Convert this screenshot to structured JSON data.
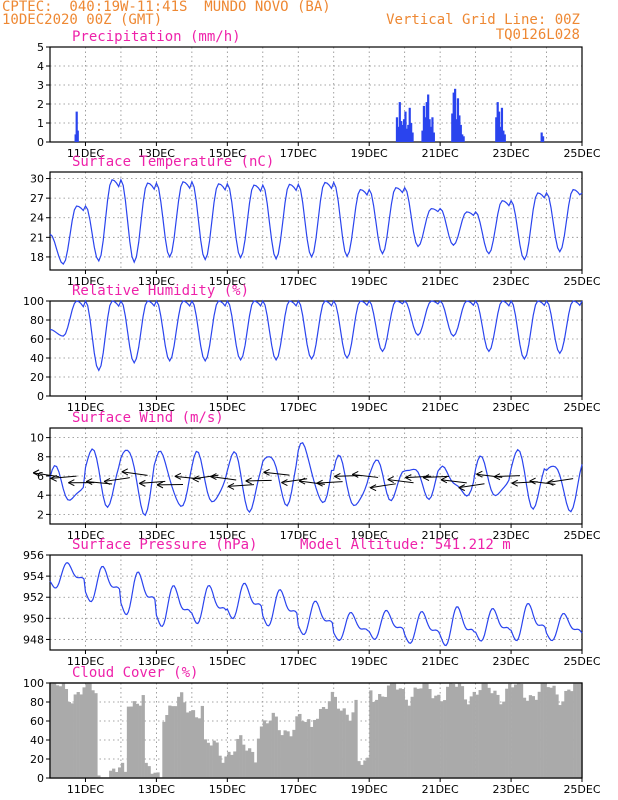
{
  "header": {
    "line1_left": "CPTEC:  040:19W-11:41S  MUNDO NOVO (BA)",
    "line2_left": "10DEC2020 00Z (GMT)",
    "line2_right": "Vertical Grid Line: 00Z",
    "line3_right": "TQ0126L028"
  },
  "colors": {
    "header": "#ee8833",
    "title": "#ee22aa",
    "series": "#2a44ee",
    "cloud": "#aaaaaa",
    "wind_arrow": "#000000"
  },
  "x_axis": {
    "labels": [
      "11DEC",
      "13DEC",
      "15DEC",
      "17DEC",
      "19DEC",
      "21DEC",
      "23DEC",
      "25DEC"
    ],
    "start": "10DEC2020 00Z",
    "end": "25DEC2020 00Z"
  },
  "chart_data": [
    {
      "id": "precip",
      "type": "bar",
      "title": "Precipitation (mm/h)",
      "ylim": [
        0,
        5
      ],
      "yticks": [
        0,
        1,
        2,
        3,
        4,
        5
      ],
      "grid": true,
      "x_days": [
        0.72,
        0.75,
        0.78,
        9.78,
        9.82,
        9.86,
        9.9,
        9.94,
        9.98,
        10.02,
        10.06,
        10.1,
        10.14,
        10.18,
        10.22,
        10.5,
        10.54,
        10.58,
        10.62,
        10.66,
        10.7,
        10.74,
        10.78,
        10.82,
        11.34,
        11.38,
        11.42,
        11.46,
        11.5,
        11.54,
        11.58,
        11.62,
        11.66,
        12.58,
        12.62,
        12.66,
        12.7,
        12.74,
        12.78,
        12.82,
        13.86,
        13.9
      ],
      "values": [
        0.4,
        1.6,
        0.6,
        1.3,
        0.8,
        2.1,
        1.1,
        0.9,
        1.2,
        1.6,
        0.7,
        0.9,
        1.8,
        1.0,
        0.5,
        0.6,
        1.9,
        1.3,
        2.1,
        2.5,
        1.2,
        0.8,
        1.3,
        0.5,
        1.5,
        2.6,
        2.8,
        1.2,
        2.3,
        1.4,
        0.9,
        0.4,
        0.3,
        1.3,
        2.1,
        1.6,
        0.8,
        1.8,
        0.6,
        0.4,
        0.5,
        0.3
      ]
    },
    {
      "id": "temperature",
      "type": "line",
      "title": "Surface Temperature (nC)",
      "ylim": [
        16,
        31
      ],
      "yticks": [
        18,
        21,
        24,
        27,
        30
      ],
      "grid": true,
      "daily_max": [
        25.8,
        29.8,
        29.3,
        29.5,
        29.2,
        29.0,
        29.1,
        29.4,
        28.3,
        28.6,
        25.4,
        24.9,
        26.6,
        27.8,
        28.3
      ],
      "daily_min": [
        16.9,
        17.4,
        17.2,
        18.0,
        17.6,
        17.9,
        17.7,
        18.0,
        18.1,
        18.5,
        19.6,
        19.8,
        18.5,
        17.6,
        18.8
      ]
    },
    {
      "id": "humidity",
      "type": "line",
      "title": "Relative Humidity (%)",
      "ylim": [
        0,
        100
      ],
      "yticks": [
        0,
        20,
        40,
        60,
        80,
        100
      ],
      "grid": true,
      "daily_max": [
        100,
        100,
        100,
        100,
        100,
        100,
        100,
        100,
        100,
        100,
        100,
        100,
        100,
        100,
        100
      ],
      "daily_min": [
        63,
        27,
        35,
        37,
        37,
        38,
        38,
        39,
        40,
        47,
        64,
        63,
        47,
        39,
        45
      ]
    },
    {
      "id": "wind",
      "type": "line",
      "title": "Surface Wind (m/s)",
      "ylim": [
        1,
        11
      ],
      "yticks": [
        2,
        4,
        6,
        8,
        10
      ],
      "grid": true,
      "speed_daily_max": [
        6.5,
        8.6,
        9.3,
        8.5,
        8.0,
        8.3,
        8.6,
        9.4,
        7.6,
        7.4,
        7.2,
        6.8,
        7.5,
        8.5,
        7.6
      ],
      "speed_daily_min": [
        3.3,
        3.2,
        2.4,
        2.6,
        3.0,
        2.7,
        3.4,
        3.0,
        2.6,
        3.9,
        4.1,
        3.9,
        3.7,
        3.0,
        2.8
      ],
      "arrows_every_hours": 12,
      "arrow_direction": "from east"
    },
    {
      "id": "pressure",
      "type": "line",
      "title": "Surface Pressure (hPa)",
      "annotation": "Model Altitude: 541.212 m",
      "ylim": [
        947,
        956
      ],
      "yticks": [
        948,
        950,
        952,
        954,
        956
      ],
      "grid": true,
      "daily_max": [
        955.4,
        955.1,
        954.6,
        953.3,
        953.3,
        953.5,
        952.9,
        951.8,
        950.7,
        950.9,
        950.8,
        951.3,
        951.1,
        951.6,
        950.6
      ],
      "daily_min": [
        952.6,
        951.2,
        949.9,
        948.8,
        949.1,
        949.6,
        948.9,
        948.1,
        947.6,
        947.7,
        947.3,
        947.0,
        947.5,
        947.5,
        947.6
      ]
    },
    {
      "id": "cloud",
      "type": "area",
      "title": "Cloud Cover (%)",
      "ylim": [
        0,
        100
      ],
      "yticks": [
        0,
        20,
        40,
        60,
        80,
        100
      ],
      "grid": true,
      "segments": [
        {
          "from_day": 0.0,
          "to_day": 1.3,
          "level": 92
        },
        {
          "from_day": 1.3,
          "to_day": 2.2,
          "level": 3
        },
        {
          "from_day": 2.2,
          "to_day": 2.7,
          "level": 85
        },
        {
          "from_day": 2.7,
          "to_day": 3.2,
          "level": 2
        },
        {
          "from_day": 3.2,
          "to_day": 4.3,
          "level": 75
        },
        {
          "from_day": 4.3,
          "to_day": 5.8,
          "level": 30
        },
        {
          "from_day": 5.8,
          "to_day": 7.4,
          "level": 55
        },
        {
          "from_day": 7.4,
          "to_day": 8.7,
          "level": 75
        },
        {
          "from_day": 8.7,
          "to_day": 9.0,
          "level": 10
        },
        {
          "from_day": 9.0,
          "to_day": 15.0,
          "level": 92
        }
      ]
    }
  ]
}
